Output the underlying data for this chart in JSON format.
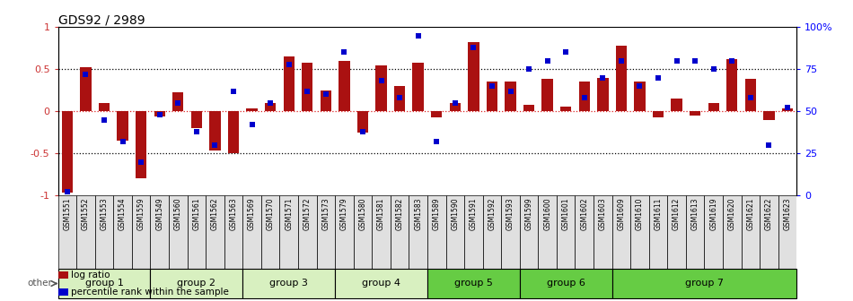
{
  "title": "GDS92 / 2989",
  "samples": [
    "GSM1551",
    "GSM1552",
    "GSM1553",
    "GSM1554",
    "GSM1559",
    "GSM1549",
    "GSM1560",
    "GSM1561",
    "GSM1562",
    "GSM1563",
    "GSM1569",
    "GSM1570",
    "GSM1571",
    "GSM1572",
    "GSM1573",
    "GSM1579",
    "GSM1580",
    "GSM1581",
    "GSM1582",
    "GSM1583",
    "GSM1589",
    "GSM1590",
    "GSM1591",
    "GSM1592",
    "GSM1593",
    "GSM1599",
    "GSM1600",
    "GSM1601",
    "GSM1602",
    "GSM1603",
    "GSM1609",
    "GSM1610",
    "GSM1611",
    "GSM1612",
    "GSM1613",
    "GSM1619",
    "GSM1620",
    "GSM1621",
    "GSM1622",
    "GSM1623"
  ],
  "log_ratio": [
    -0.97,
    0.52,
    0.1,
    -0.35,
    -0.8,
    -0.06,
    0.23,
    -0.2,
    -0.47,
    -0.5,
    0.03,
    0.1,
    0.65,
    0.58,
    0.25,
    0.6,
    -0.25,
    0.55,
    0.3,
    0.58,
    -0.07,
    0.1,
    0.82,
    0.35,
    0.35,
    0.08,
    0.38,
    0.05,
    0.35,
    0.4,
    0.78,
    0.35,
    -0.07,
    0.15,
    -0.05,
    0.1,
    0.62,
    0.38,
    -0.1,
    0.03
  ],
  "percentile": [
    2,
    72,
    45,
    32,
    20,
    48,
    55,
    38,
    30,
    62,
    42,
    55,
    78,
    62,
    60,
    85,
    38,
    68,
    58,
    95,
    32,
    55,
    88,
    65,
    62,
    75,
    80,
    85,
    58,
    70,
    80,
    65,
    70,
    80,
    80,
    75,
    80,
    58,
    30,
    52
  ],
  "groups": [
    {
      "name": "group 1",
      "start": 0,
      "end": 4,
      "color": "#d8f0c0"
    },
    {
      "name": "group 2",
      "start": 5,
      "end": 9,
      "color": "#d8f0c0"
    },
    {
      "name": "group 3",
      "start": 10,
      "end": 14,
      "color": "#d8f0c0"
    },
    {
      "name": "group 4",
      "start": 15,
      "end": 19,
      "color": "#d8f0c0"
    },
    {
      "name": "group 5",
      "start": 20,
      "end": 24,
      "color": "#66cc44"
    },
    {
      "name": "group 6",
      "start": 25,
      "end": 29,
      "color": "#66cc44"
    },
    {
      "name": "group 7",
      "start": 30,
      "end": 39,
      "color": "#66cc44"
    }
  ],
  "bar_color": "#aa1111",
  "dot_color": "#0000cc",
  "ylim_left": [
    -1.0,
    1.0
  ],
  "ylim_right": [
    0,
    100
  ],
  "legend_items": [
    {
      "label": "log ratio",
      "color": "#aa1111"
    },
    {
      "label": "percentile rank within the sample",
      "color": "#0000cc"
    }
  ]
}
